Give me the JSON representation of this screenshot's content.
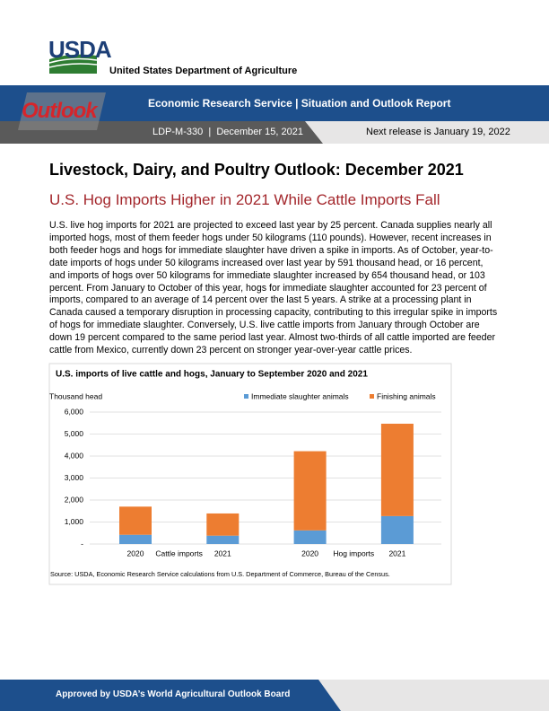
{
  "header": {
    "agency_abbr": "USDA",
    "agency": "United States Department of Agriculture",
    "logo_text": "Outlook",
    "banner": "Economic Research Service | Situation and Outlook Report",
    "report_id": "LDP-M-330  |  December 15, 2021",
    "next_release": "Next release is January 19, 2022"
  },
  "article": {
    "title": "Livestock, Dairy, and Poultry Outlook: December 2021",
    "subtitle": "U.S. Hog Imports Higher in 2021 While Cattle Imports Fall",
    "body": "U.S. live hog imports for 2021 are projected to exceed last year by 25 percent. Canada supplies nearly all imported hogs, most of them feeder hogs under 50 kilograms (110 pounds). However, recent increases in both feeder hogs and hogs for immediate slaughter have driven a spike in imports. As of October, year-to-date imports of hogs under 50 kilograms increased over last year by 591 thousand head, or 16 percent, and imports of hogs over 50 kilograms for immediate slaughter increased by 654 thousand head, or 103 percent. From January to October of this year, hogs for immediate slaughter accounted for 23 percent of imports, compared to an average of 14 percent over the last 5 years. A strike at a processing plant in Canada caused a temporary disruption in processing capacity, contributing to this irregular spike in imports of hogs for immediate slaughter. Conversely, U.S. live cattle imports from January through October are down 19 percent compared to the same period last year. Almost two-thirds of all cattle imported are feeder cattle from Mexico, currently down 23 percent on stronger year-over-year cattle prices."
  },
  "chart_data": {
    "type": "stacked_bar",
    "title": "U.S. imports of live cattle and hogs, January to September 2020 and 2021",
    "y_label": "Thousand head",
    "categories": [
      "2020",
      "2021",
      "2020",
      "2021"
    ],
    "category_groups": [
      "Cattle imports",
      "Hog imports"
    ],
    "series": [
      {
        "name": "Immediate slaughter animals",
        "color": "#5b9bd5",
        "values": [
          420,
          380,
          620,
          1270
        ]
      },
      {
        "name": "Finishing animals",
        "color": "#ed7d31",
        "values": [
          1280,
          1010,
          3600,
          4200
        ]
      }
    ],
    "ylim": [
      0,
      6000
    ],
    "yticks": [
      {
        "value": 0,
        "label": "-"
      },
      {
        "value": 1000,
        "label": "1,000"
      },
      {
        "value": 2000,
        "label": "2,000"
      },
      {
        "value": 3000,
        "label": "3,000"
      },
      {
        "value": 4000,
        "label": "4,000"
      },
      {
        "value": 5000,
        "label": "5,000"
      },
      {
        "value": 6000,
        "label": "6,000"
      }
    ],
    "grid": true,
    "source": "Source: USDA, Economic Research Service calculations from U.S. Department of Commerce, Bureau of the Census."
  },
  "footer": {
    "text": "Approved by USDA’s World Agricultural Outlook Board"
  }
}
